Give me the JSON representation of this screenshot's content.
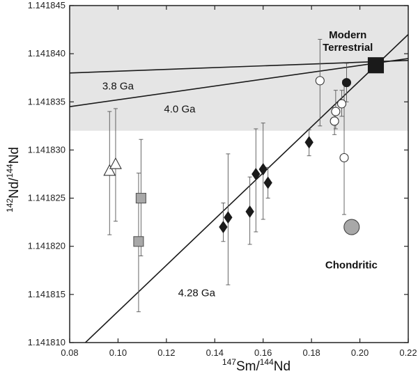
{
  "chart_data": {
    "type": "scatter",
    "title": "",
    "xlabel": {
      "pre_sup": "147",
      "main1": "Sm/",
      "mid_sup": "144",
      "main2": "Nd"
    },
    "ylabel": {
      "pre_sup": "142",
      "main1": "Nd/",
      "mid_sup": "144",
      "main2": "Nd"
    },
    "xlim": [
      0.08,
      0.22
    ],
    "ylim": [
      1.14181,
      1.141845
    ],
    "x_ticks": [
      0.08,
      0.1,
      0.12,
      0.14,
      0.16,
      0.18,
      0.2,
      0.22
    ],
    "x_tick_labels": [
      "0.08",
      "0.10",
      "0.12",
      "0.14",
      "0.16",
      "0.18",
      "0.20",
      "0.22"
    ],
    "y_ticks": [
      1.14181,
      1.141815,
      1.14182,
      1.141825,
      1.14183,
      1.141835,
      1.14184,
      1.141845
    ],
    "y_tick_labels": [
      "1.141810",
      "1.141815",
      "1.141820",
      "1.141825",
      "1.141830",
      "1.141835",
      "1.141840",
      "1.141845"
    ],
    "shaded_band": {
      "y_from": 1.141832,
      "y_to": 1.141845,
      "color": "#e5e5e5"
    },
    "lines": [
      {
        "name": "3.8 Ga isochron",
        "label": "3.8 Ga",
        "points": [
          [
            0.08,
            1.141838
          ],
          [
            0.22,
            1.1418393
          ]
        ]
      },
      {
        "name": "4.0 Ga isochron",
        "label": "4.0 Ga",
        "points": [
          [
            0.08,
            1.1418345
          ],
          [
            0.22,
            1.1418395
          ]
        ]
      },
      {
        "name": "4.28 Ga isochron",
        "label": "4.28 Ga",
        "points": [
          [
            0.0865,
            1.14181
          ],
          [
            0.22,
            1.141842
          ]
        ]
      }
    ],
    "series": [
      {
        "name": "open triangles",
        "marker": "triangle",
        "fill": "#ffffff",
        "stroke": "#333333",
        "points": [
          {
            "x": 0.0965,
            "y": 1.1418278,
            "err_low": 1.1418212,
            "err_high": 1.141834
          },
          {
            "x": 0.099,
            "y": 1.1418285,
            "err_low": 1.1418226,
            "err_high": 1.1418343
          }
        ]
      },
      {
        "name": "grey squares",
        "marker": "square",
        "fill": "#a8a8a8",
        "stroke": "#555555",
        "points": [
          {
            "x": 0.1095,
            "y": 1.141825,
            "err_low": 1.141819,
            "err_high": 1.1418311
          },
          {
            "x": 0.1085,
            "y": 1.1418205,
            "err_low": 1.1418132,
            "err_high": 1.1418276
          }
        ]
      },
      {
        "name": "black diamonds",
        "marker": "diamond",
        "fill": "#1a1a1a",
        "stroke": "#1a1a1a",
        "points": [
          {
            "x": 0.1435,
            "y": 1.141822,
            "err_low": 1.1418205,
            "err_high": 1.1418245
          },
          {
            "x": 0.1455,
            "y": 1.141823,
            "err_low": 1.141816,
            "err_high": 1.1418296
          },
          {
            "x": 0.1545,
            "y": 1.1418236,
            "err_low": 1.1418202,
            "err_high": 1.1418272
          },
          {
            "x": 0.157,
            "y": 1.1418275,
            "err_low": 1.1418215,
            "err_high": 1.1418322
          },
          {
            "x": 0.16,
            "y": 1.141828,
            "err_low": 1.1418228,
            "err_high": 1.1418328
          },
          {
            "x": 0.162,
            "y": 1.1418266,
            "err_low": 1.141825,
            "err_high": 1.1418282
          },
          {
            "x": 0.179,
            "y": 1.1418308,
            "err_low": 1.1418294,
            "err_high": 1.1418321
          }
        ]
      },
      {
        "name": "open circles",
        "marker": "circle",
        "fill": "#ffffff",
        "stroke": "#333333",
        "points": [
          {
            "x": 0.1835,
            "y": 1.1418372,
            "err_low": 1.1418325,
            "err_high": 1.1418415
          },
          {
            "x": 0.1895,
            "y": 1.141833,
            "err_low": 1.1418316,
            "err_high": 1.1418344
          },
          {
            "x": 0.19,
            "y": 1.141834,
            "err_low": 1.1418322,
            "err_high": 1.1418362
          },
          {
            "x": 0.1925,
            "y": 1.1418348,
            "err_low": 1.1418335,
            "err_high": 1.1418362
          },
          {
            "x": 0.1935,
            "y": 1.1418292,
            "err_low": 1.1418233,
            "err_high": 1.1418372
          }
        ]
      },
      {
        "name": "black circle",
        "marker": "circle",
        "fill": "#1a1a1a",
        "stroke": "#1a1a1a",
        "points": [
          {
            "x": 0.1945,
            "y": 1.141837,
            "err_low": 1.141835,
            "err_high": 1.141839
          }
        ]
      },
      {
        "name": "Chondritic",
        "marker": "bigcircle",
        "fill": "#a8a8a8",
        "stroke": "#444444",
        "points": [
          {
            "x": 0.1966,
            "y": 1.141822
          }
        ]
      },
      {
        "name": "Modern Terrestrial",
        "marker": "bigsquare",
        "fill": "#1a1a1a",
        "stroke": "#1a1a1a",
        "points": [
          {
            "x": 0.2066,
            "y": 1.1418388
          }
        ]
      }
    ],
    "annotations": [
      {
        "name": "label-modern",
        "text": "Modern",
        "x": 0.195,
        "y": 1.1418416,
        "style": "bold",
        "anchor": "middle"
      },
      {
        "name": "label-terrestrial",
        "text": "Terrestrial",
        "x": 0.195,
        "y": 1.1418403,
        "style": "bold",
        "anchor": "middle"
      },
      {
        "name": "label-chondritic",
        "text": "Chondritic",
        "x": 0.1965,
        "y": 1.1418177,
        "style": "bold",
        "anchor": "middle"
      },
      {
        "name": "label-3.8ga",
        "text": "3.8 Ga",
        "x": 0.1,
        "y": 1.1418363,
        "style": "normal",
        "anchor": "middle"
      },
      {
        "name": "label-4.0ga",
        "text": "4.0 Ga",
        "x": 0.1255,
        "y": 1.1418339,
        "style": "normal",
        "anchor": "middle"
      },
      {
        "name": "label-4.28ga",
        "text": "4.28 Ga",
        "x": 0.1325,
        "y": 1.1418148,
        "style": "normal",
        "anchor": "middle"
      }
    ]
  }
}
